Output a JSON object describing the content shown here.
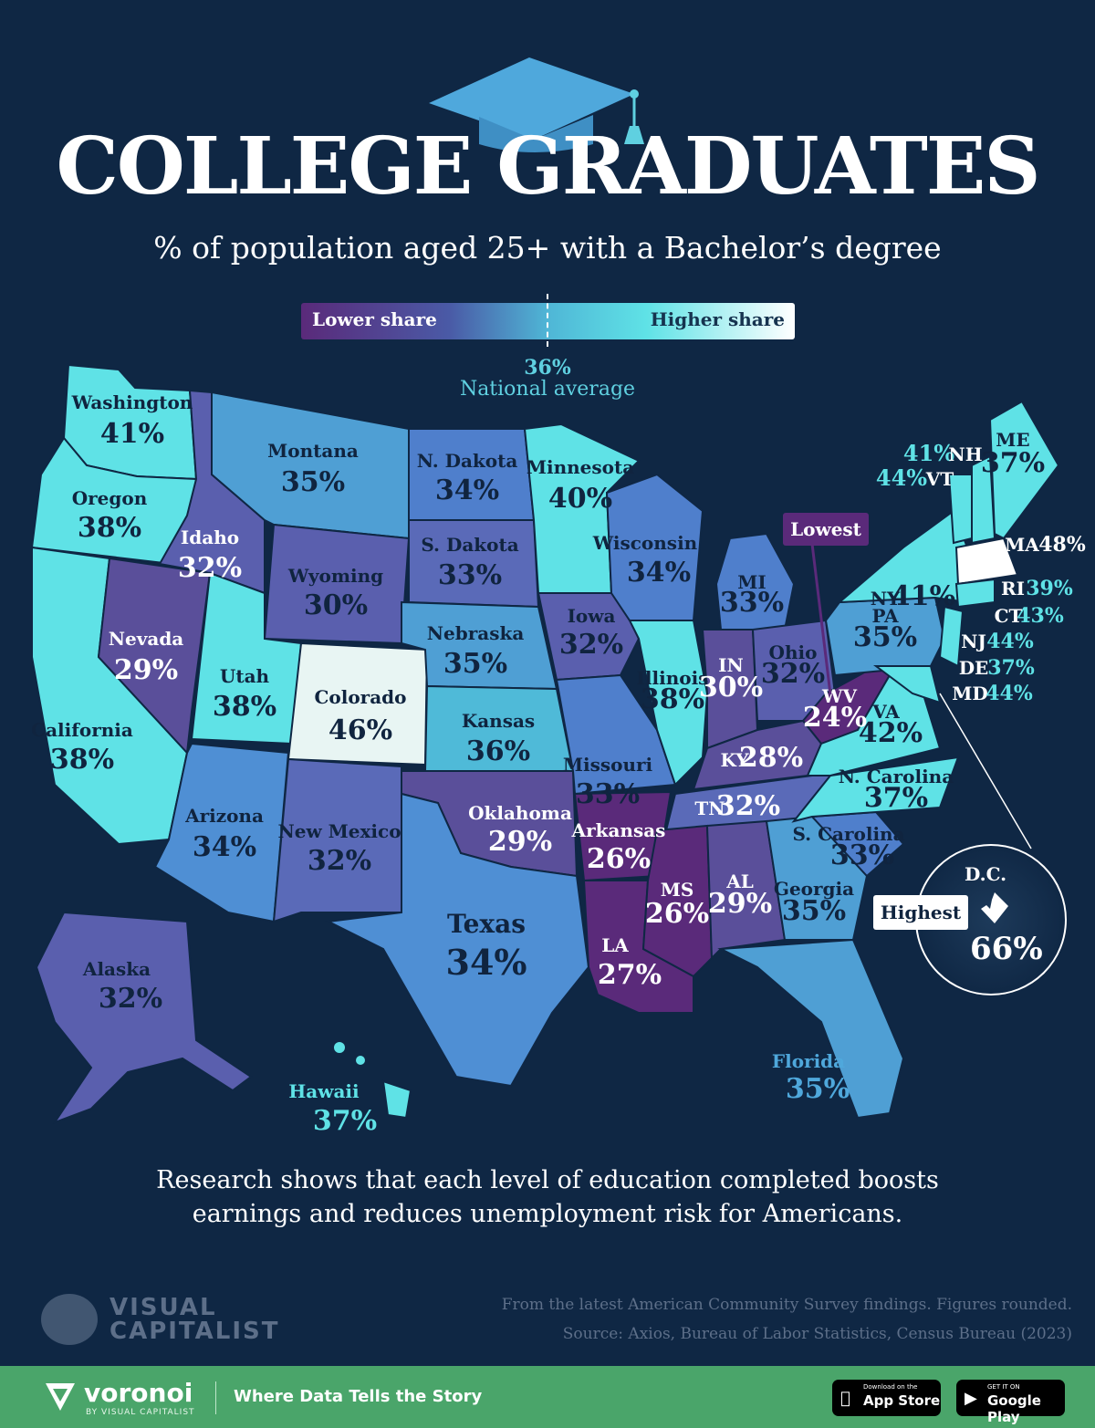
{
  "header": {
    "title": "COLLEGE GRADUATES",
    "subtitle": "% of population aged 25+ with a Bachelor’s degree"
  },
  "legend": {
    "low_label": "Lower share",
    "high_label": "Higher share",
    "average_value": "36%",
    "average_label": "National average",
    "colors": {
      "low": "#5a2a7a",
      "mid_low": "#4a5aa6",
      "mid": "#4fb6d6",
      "mid_high": "#5fe2e6",
      "high": "#ffffff"
    }
  },
  "states": {
    "washington": {
      "name": "Washington",
      "value": "41%"
    },
    "oregon": {
      "name": "Oregon",
      "value": "38%"
    },
    "california": {
      "name": "California",
      "value": "38%"
    },
    "idaho": {
      "name": "Idaho",
      "value": "32%"
    },
    "nevada": {
      "name": "Nevada",
      "value": "29%"
    },
    "utah": {
      "name": "Utah",
      "value": "38%"
    },
    "arizona": {
      "name": "Arizona",
      "value": "34%"
    },
    "montana": {
      "name": "Montana",
      "value": "35%"
    },
    "wyoming": {
      "name": "Wyoming",
      "value": "30%"
    },
    "colorado": {
      "name": "Colorado",
      "value": "46%"
    },
    "new_mexico": {
      "name": "New Mexico",
      "value": "32%"
    },
    "n_dakota": {
      "name": "N. Dakota",
      "value": "34%"
    },
    "s_dakota": {
      "name": "S. Dakota",
      "value": "33%"
    },
    "nebraska": {
      "name": "Nebraska",
      "value": "35%"
    },
    "kansas": {
      "name": "Kansas",
      "value": "36%"
    },
    "oklahoma": {
      "name": "Oklahoma",
      "value": "29%"
    },
    "texas": {
      "name": "Texas",
      "value": "34%"
    },
    "minnesota": {
      "name": "Minnesota",
      "value": "40%"
    },
    "iowa": {
      "name": "Iowa",
      "value": "32%"
    },
    "missouri": {
      "name": "Missouri",
      "value": "33%"
    },
    "arkansas": {
      "name": "Arkansas",
      "value": "26%"
    },
    "louisiana": {
      "name": "LA",
      "value": "27%"
    },
    "wisconsin": {
      "name": "Wisconsin",
      "value": "34%"
    },
    "illinois": {
      "name": "Illinois",
      "value": "38%"
    },
    "michigan": {
      "name": "MI",
      "value": "33%"
    },
    "indiana": {
      "name": "IN",
      "value": "30%"
    },
    "ohio": {
      "name": "Ohio",
      "value": "32%"
    },
    "kentucky": {
      "name": "KY",
      "value": "28%"
    },
    "tennessee": {
      "name": "TN",
      "value": "32%"
    },
    "mississippi": {
      "name": "MS",
      "value": "26%"
    },
    "alabama": {
      "name": "AL",
      "value": "29%"
    },
    "georgia": {
      "name": "Georgia",
      "value": "35%"
    },
    "florida": {
      "name": "Florida",
      "value": "35%"
    },
    "s_carolina": {
      "name": "S. Carolina",
      "value": "33%"
    },
    "n_carolina": {
      "name": "N. Carolina",
      "value": "37%"
    },
    "virginia": {
      "name": "VA",
      "value": "42%"
    },
    "west_virginia": {
      "name": "WV",
      "value": "24%"
    },
    "pennsylvania": {
      "name": "PA",
      "value": "35%"
    },
    "new_york": {
      "name": "NY",
      "value": "41%"
    },
    "maine": {
      "name": "ME",
      "value": "37%"
    },
    "new_hampshire": {
      "name": "NH",
      "value": "41%"
    },
    "vermont": {
      "name": "VT",
      "value": "44%"
    },
    "massachusetts": {
      "name": "MA",
      "value": "48%"
    },
    "rhode_island": {
      "name": "RI",
      "value": "39%"
    },
    "connecticut": {
      "name": "CT",
      "value": "43%"
    },
    "new_jersey": {
      "name": "NJ",
      "value": "44%"
    },
    "delaware": {
      "name": "DE",
      "value": "37%"
    },
    "maryland": {
      "name": "MD",
      "value": "44%"
    },
    "alaska": {
      "name": "Alaska",
      "value": "32%"
    },
    "hawaii": {
      "name": "Hawaii",
      "value": "37%"
    },
    "dc": {
      "name": "D.C.",
      "value": "66%"
    }
  },
  "callouts": {
    "lowest": "Lowest",
    "highest": "Highest"
  },
  "note": {
    "line1": "Research shows that each level of education completed boosts",
    "line2": "earnings and reduces unemployment risk for Americans."
  },
  "brand": {
    "line1": "VISUAL",
    "line2": "CAPITALIST"
  },
  "source": {
    "line1": "From the latest American Community Survey findings. Figures rounded.",
    "line2": "Source: Axios, Bureau of Labor Statistics, Census Bureau (2023)"
  },
  "footer": {
    "name": "voronoi",
    "by": "BY VISUAL CAPITALIST",
    "tagline": "Where Data Tells the Story",
    "appstore_small": "Download on the",
    "appstore_big": "App Store",
    "googleplay_small": "GET IT ON",
    "googleplay_big": "Google Play"
  }
}
